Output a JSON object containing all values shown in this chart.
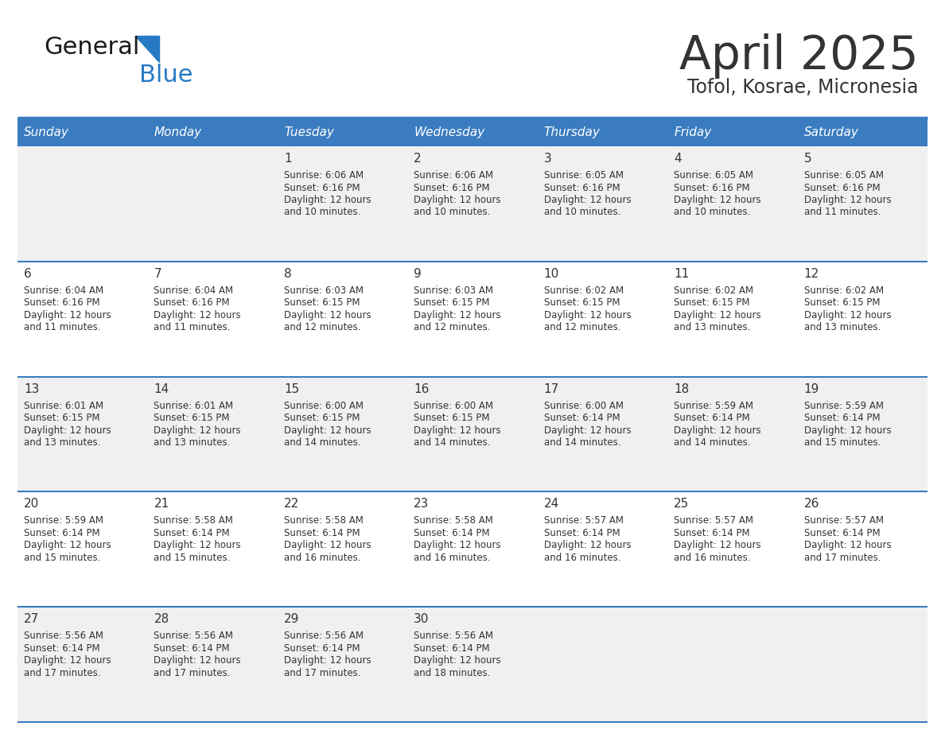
{
  "title": "April 2025",
  "subtitle": "Tofol, Kosrae, Micronesia",
  "days_of_week": [
    "Sunday",
    "Monday",
    "Tuesday",
    "Wednesday",
    "Thursday",
    "Friday",
    "Saturday"
  ],
  "header_bg": "#3a7cbf",
  "header_text": "#ffffff",
  "cell_bg_odd": "#f0f0f0",
  "cell_bg_even": "#ffffff",
  "separator_color": "#3a7cbf",
  "text_color": "#333333",
  "logo_general_color": "#1a1a1a",
  "logo_blue_color": "#2779c4",
  "calendar_data": [
    [
      null,
      null,
      {
        "day": 1,
        "sunrise": "6:06 AM",
        "sunset": "6:16 PM",
        "daylight_h": "12 hours",
        "daylight_m": "and 10 minutes."
      },
      {
        "day": 2,
        "sunrise": "6:06 AM",
        "sunset": "6:16 PM",
        "daylight_h": "12 hours",
        "daylight_m": "and 10 minutes."
      },
      {
        "day": 3,
        "sunrise": "6:05 AM",
        "sunset": "6:16 PM",
        "daylight_h": "12 hours",
        "daylight_m": "and 10 minutes."
      },
      {
        "day": 4,
        "sunrise": "6:05 AM",
        "sunset": "6:16 PM",
        "daylight_h": "12 hours",
        "daylight_m": "and 10 minutes."
      },
      {
        "day": 5,
        "sunrise": "6:05 AM",
        "sunset": "6:16 PM",
        "daylight_h": "12 hours",
        "daylight_m": "and 11 minutes."
      }
    ],
    [
      {
        "day": 6,
        "sunrise": "6:04 AM",
        "sunset": "6:16 PM",
        "daylight_h": "12 hours",
        "daylight_m": "and 11 minutes."
      },
      {
        "day": 7,
        "sunrise": "6:04 AM",
        "sunset": "6:16 PM",
        "daylight_h": "12 hours",
        "daylight_m": "and 11 minutes."
      },
      {
        "day": 8,
        "sunrise": "6:03 AM",
        "sunset": "6:15 PM",
        "daylight_h": "12 hours",
        "daylight_m": "and 12 minutes."
      },
      {
        "day": 9,
        "sunrise": "6:03 AM",
        "sunset": "6:15 PM",
        "daylight_h": "12 hours",
        "daylight_m": "and 12 minutes."
      },
      {
        "day": 10,
        "sunrise": "6:02 AM",
        "sunset": "6:15 PM",
        "daylight_h": "12 hours",
        "daylight_m": "and 12 minutes."
      },
      {
        "day": 11,
        "sunrise": "6:02 AM",
        "sunset": "6:15 PM",
        "daylight_h": "12 hours",
        "daylight_m": "and 13 minutes."
      },
      {
        "day": 12,
        "sunrise": "6:02 AM",
        "sunset": "6:15 PM",
        "daylight_h": "12 hours",
        "daylight_m": "and 13 minutes."
      }
    ],
    [
      {
        "day": 13,
        "sunrise": "6:01 AM",
        "sunset": "6:15 PM",
        "daylight_h": "12 hours",
        "daylight_m": "and 13 minutes."
      },
      {
        "day": 14,
        "sunrise": "6:01 AM",
        "sunset": "6:15 PM",
        "daylight_h": "12 hours",
        "daylight_m": "and 13 minutes."
      },
      {
        "day": 15,
        "sunrise": "6:00 AM",
        "sunset": "6:15 PM",
        "daylight_h": "12 hours",
        "daylight_m": "and 14 minutes."
      },
      {
        "day": 16,
        "sunrise": "6:00 AM",
        "sunset": "6:15 PM",
        "daylight_h": "12 hours",
        "daylight_m": "and 14 minutes."
      },
      {
        "day": 17,
        "sunrise": "6:00 AM",
        "sunset": "6:14 PM",
        "daylight_h": "12 hours",
        "daylight_m": "and 14 minutes."
      },
      {
        "day": 18,
        "sunrise": "5:59 AM",
        "sunset": "6:14 PM",
        "daylight_h": "12 hours",
        "daylight_m": "and 14 minutes."
      },
      {
        "day": 19,
        "sunrise": "5:59 AM",
        "sunset": "6:14 PM",
        "daylight_h": "12 hours",
        "daylight_m": "and 15 minutes."
      }
    ],
    [
      {
        "day": 20,
        "sunrise": "5:59 AM",
        "sunset": "6:14 PM",
        "daylight_h": "12 hours",
        "daylight_m": "and 15 minutes."
      },
      {
        "day": 21,
        "sunrise": "5:58 AM",
        "sunset": "6:14 PM",
        "daylight_h": "12 hours",
        "daylight_m": "and 15 minutes."
      },
      {
        "day": 22,
        "sunrise": "5:58 AM",
        "sunset": "6:14 PM",
        "daylight_h": "12 hours",
        "daylight_m": "and 16 minutes."
      },
      {
        "day": 23,
        "sunrise": "5:58 AM",
        "sunset": "6:14 PM",
        "daylight_h": "12 hours",
        "daylight_m": "and 16 minutes."
      },
      {
        "day": 24,
        "sunrise": "5:57 AM",
        "sunset": "6:14 PM",
        "daylight_h": "12 hours",
        "daylight_m": "and 16 minutes."
      },
      {
        "day": 25,
        "sunrise": "5:57 AM",
        "sunset": "6:14 PM",
        "daylight_h": "12 hours",
        "daylight_m": "and 16 minutes."
      },
      {
        "day": 26,
        "sunrise": "5:57 AM",
        "sunset": "6:14 PM",
        "daylight_h": "12 hours",
        "daylight_m": "and 17 minutes."
      }
    ],
    [
      {
        "day": 27,
        "sunrise": "5:56 AM",
        "sunset": "6:14 PM",
        "daylight_h": "12 hours",
        "daylight_m": "and 17 minutes."
      },
      {
        "day": 28,
        "sunrise": "5:56 AM",
        "sunset": "6:14 PM",
        "daylight_h": "12 hours",
        "daylight_m": "and 17 minutes."
      },
      {
        "day": 29,
        "sunrise": "5:56 AM",
        "sunset": "6:14 PM",
        "daylight_h": "12 hours",
        "daylight_m": "and 17 minutes."
      },
      {
        "day": 30,
        "sunrise": "5:56 AM",
        "sunset": "6:14 PM",
        "daylight_h": "12 hours",
        "daylight_m": "and 18 minutes."
      },
      null,
      null,
      null
    ]
  ],
  "num_weeks": 5,
  "num_days": 7
}
